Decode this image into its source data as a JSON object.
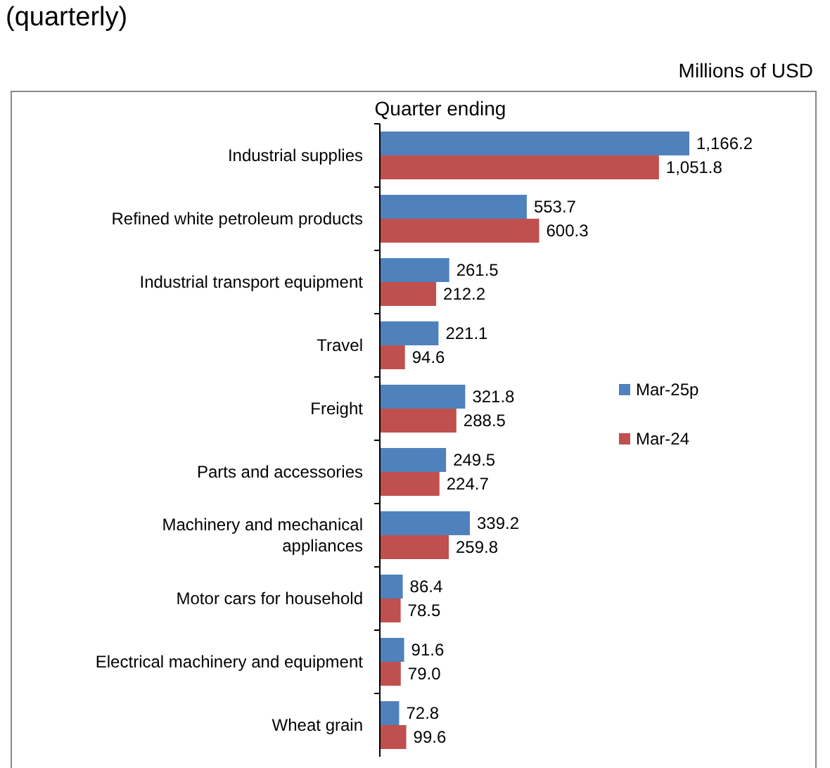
{
  "chart_data": {
    "type": "bar",
    "orientation": "horizontal",
    "title": "(quarterly)",
    "legend_title": "Quarter ending",
    "annotations": [
      "Millions of USD"
    ],
    "categories": [
      "Industrial supplies",
      "Refined white petroleum products",
      "Industrial transport equipment",
      "Travel",
      "Freight",
      "Parts and accessories",
      "Machinery and mechanical appliances",
      "Motor cars for household",
      "Electrical machinery and equipment",
      "Wheat grain"
    ],
    "series": [
      {
        "name": "Mar-25p",
        "color": "#4f81bd",
        "values": [
          1166.2,
          553.7,
          261.5,
          221.1,
          321.8,
          249.5,
          339.2,
          86.4,
          91.6,
          72.8
        ],
        "value_labels": [
          "1,166.2",
          "553.7",
          "261.5",
          "221.1",
          "321.8",
          "249.5",
          "339.2",
          "86.4",
          "91.6",
          "72.8"
        ]
      },
      {
        "name": "Mar-24",
        "color": "#c0504d",
        "values": [
          1051.8,
          600.3,
          212.2,
          94.6,
          288.5,
          224.7,
          259.8,
          78.5,
          79.0,
          99.6
        ],
        "value_labels": [
          "1,051.8",
          "600.3",
          "212.2",
          "94.6",
          "288.5",
          "224.7",
          "259.8",
          "78.5",
          "79.0",
          "99.6"
        ]
      }
    ],
    "data_labels": true,
    "legend": "right"
  }
}
